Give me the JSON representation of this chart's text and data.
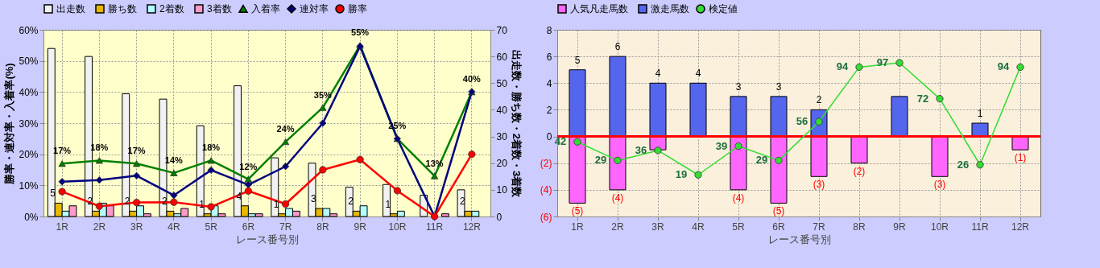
{
  "chart_data": [
    {
      "type": "bar",
      "legend": "top",
      "grid": true,
      "xlabel": "レース番号別",
      "ylabel": "勝率・連対率・入着率(%)",
      "y2label": "出走数・勝ち数・2着数・3着数",
      "categories": [
        "1R",
        "2R",
        "3R",
        "4R",
        "5R",
        "6R",
        "7R",
        "8R",
        "9R",
        "10R",
        "11R",
        "12R"
      ],
      "ylim": [
        0,
        60
      ],
      "yticks": [
        {
          "value": 0,
          "label": "0%"
        },
        {
          "value": 10,
          "label": "10%"
        },
        {
          "value": 20,
          "label": "20%"
        },
        {
          "value": 30,
          "label": "30%"
        },
        {
          "value": 40,
          "label": "40%"
        },
        {
          "value": 50,
          "label": "50%"
        },
        {
          "value": 60,
          "label": "60%"
        }
      ],
      "y2lim": [
        0,
        70
      ],
      "y2ticks": [
        0,
        10,
        20,
        30,
        40,
        50,
        60,
        70
      ],
      "series": [
        {
          "name": "出走数",
          "axis": "y2",
          "color": "#f2f2f2",
          "values": [
            63,
            60,
            46,
            44,
            34,
            49,
            22,
            20,
            11,
            12,
            8,
            10
          ]
        },
        {
          "name": "勝ち数",
          "axis": "y2",
          "color": "#e6b800",
          "values": [
            5,
            2,
            2,
            2,
            1,
            4,
            1,
            3,
            2,
            1,
            0,
            2
          ],
          "value_labels": [
            "5",
            "2",
            "2",
            "2",
            "1",
            "4",
            "1",
            "3",
            "2",
            "1",
            null,
            "2"
          ]
        },
        {
          "name": "2着数",
          "axis": "y2",
          "color": "#b3ffff",
          "values": [
            2,
            5,
            4,
            1,
            4,
            1,
            3,
            3,
            4,
            2,
            0,
            2
          ]
        },
        {
          "name": "3着数",
          "axis": "y2",
          "color": "#ff99cc",
          "values": [
            4,
            4,
            1,
            3,
            1,
            1,
            2,
            1,
            0,
            0,
            1,
            0
          ]
        },
        {
          "name": "入着率",
          "type": "line",
          "axis": "y",
          "color": "#008000",
          "marker": "triangle",
          "values": [
            17,
            18,
            17,
            14,
            18,
            12,
            24,
            35,
            55,
            25,
            13,
            40
          ],
          "value_labels": [
            "17%",
            "18%",
            "17%",
            "14%",
            "18%",
            "12%",
            "24%",
            "35%",
            "55%",
            "25%",
            "13%",
            "40%"
          ]
        },
        {
          "name": "連対率",
          "type": "line",
          "axis": "y",
          "color": "#000080",
          "marker": "diamond",
          "values": [
            11.2,
            11.7,
            13.1,
            6.8,
            14.9,
            10.2,
            16.1,
            30,
            54.7,
            25,
            0,
            40.1
          ]
        },
        {
          "name": "勝率",
          "type": "line",
          "axis": "y",
          "color": "#ff0000",
          "marker": "circle",
          "values": [
            8,
            3.3,
            4.5,
            4.6,
            3.1,
            8.2,
            4,
            15,
            18.3,
            8.3,
            0,
            20
          ]
        }
      ]
    },
    {
      "type": "bar",
      "stacked": true,
      "legend": "top",
      "grid": true,
      "xlabel": "レース番号別",
      "tick_labels": "xy",
      "categories": [
        "1R",
        "2R",
        "3R",
        "4R",
        "5R",
        "6R",
        "7R",
        "8R",
        "9R",
        "10R",
        "11R",
        "12R"
      ],
      "ylim": [
        -6,
        8
      ],
      "yticks": [
        {
          "value": -6,
          "label": "(6)"
        },
        {
          "value": -4,
          "label": "(4)"
        },
        {
          "value": -2,
          "label": "(2)"
        },
        0,
        2,
        4,
        6,
        8
      ],
      "y2lim": [
        -10,
        120
      ],
      "ref_lines": [
        {
          "axis": "y",
          "value": 0,
          "color": "#ff0000"
        }
      ],
      "series": [
        {
          "name": "人気凡走馬数",
          "color": "#ff66ff",
          "values": [
            -5,
            -4,
            -1,
            0,
            -4,
            -5,
            -3,
            -2,
            0,
            -3,
            0,
            -1
          ],
          "value_labels": [
            "(5)",
            "(4)",
            null,
            null,
            "(4)",
            "(5)",
            "(3)",
            "(2)",
            null,
            "(3)",
            null,
            "(1)"
          ]
        },
        {
          "name": "激走馬数",
          "color": "#5566ee",
          "values": [
            5,
            6,
            4,
            4,
            3,
            3,
            2,
            0,
            3,
            0,
            1,
            0
          ],
          "value_labels": [
            "5",
            "6",
            "4",
            "4",
            "3",
            "3",
            "2",
            null,
            null,
            null,
            "1",
            null
          ]
        },
        {
          "name": "検定値",
          "type": "line",
          "axis": "y2",
          "color": "#33dd33",
          "marker": "circle",
          "values": [
            42,
            29,
            36,
            19,
            39,
            29,
            56,
            94,
            97,
            72,
            26,
            94
          ],
          "value_labels": [
            "42",
            "29",
            "36",
            "19",
            "39",
            "29",
            "56",
            "94",
            "97",
            "72",
            "26",
            "94"
          ]
        }
      ]
    }
  ]
}
